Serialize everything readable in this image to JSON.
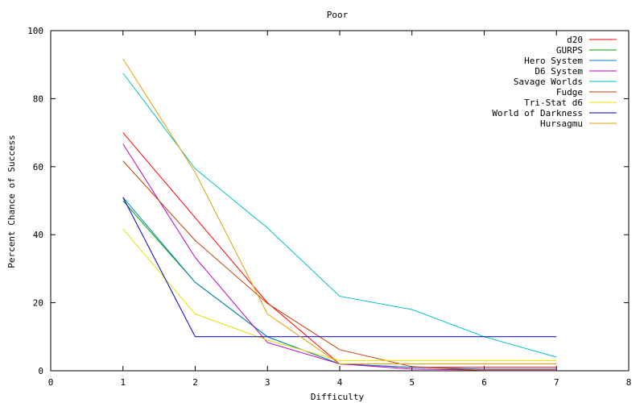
{
  "chart_data": {
    "type": "line",
    "title": "Poor",
    "xlabel": "Difficulty",
    "ylabel": "Percent Chance of Success",
    "xlim": [
      0,
      8
    ],
    "ylim": [
      0,
      100
    ],
    "xticks": [
      "0",
      "1",
      "2",
      "3",
      "4",
      "5",
      "6",
      "7",
      "8"
    ],
    "yticks": [
      "0",
      "20",
      "40",
      "60",
      "80",
      "100"
    ],
    "grid": false,
    "legend": "top-right",
    "x": [
      1,
      2,
      3,
      4,
      5,
      6,
      7
    ],
    "series": [
      {
        "name": "d20",
        "color": "#ff0000",
        "values": [
          70,
          45,
          20,
          2,
          1,
          1,
          1
        ]
      },
      {
        "name": "GURPS",
        "color": "#00a000",
        "values": [
          50,
          26,
          10,
          2,
          2,
          2,
          2
        ]
      },
      {
        "name": "Hero System",
        "color": "#0080c0",
        "values": [
          51,
          26,
          10,
          2,
          1,
          0.5,
          0.5
        ]
      },
      {
        "name": "D6 System",
        "color": "#c000c0",
        "values": [
          66.7,
          33.3,
          8.3,
          2,
          0.5,
          0.2,
          0.2
        ]
      },
      {
        "name": "Savage Worlds",
        "color": "#00c0c0",
        "values": [
          87.5,
          59.4,
          42,
          21.9,
          18,
          10,
          4
        ]
      },
      {
        "name": "Fudge",
        "color": "#c04000",
        "values": [
          61.7,
          38.3,
          19.8,
          6.2,
          1.2,
          0.1,
          0.1
        ]
      },
      {
        "name": "Tri-Stat d6",
        "color": "#e8e000",
        "values": [
          41.7,
          16.7,
          9,
          3,
          3,
          3,
          3
        ]
      },
      {
        "name": "World of Darkness",
        "color": "#0000c0",
        "values": [
          51,
          10,
          10,
          10,
          10,
          10,
          10
        ]
      },
      {
        "name": "Hursagmu",
        "color": "#e0a000",
        "values": [
          91.7,
          58.3,
          16.7,
          2,
          2,
          2,
          2
        ]
      }
    ]
  }
}
